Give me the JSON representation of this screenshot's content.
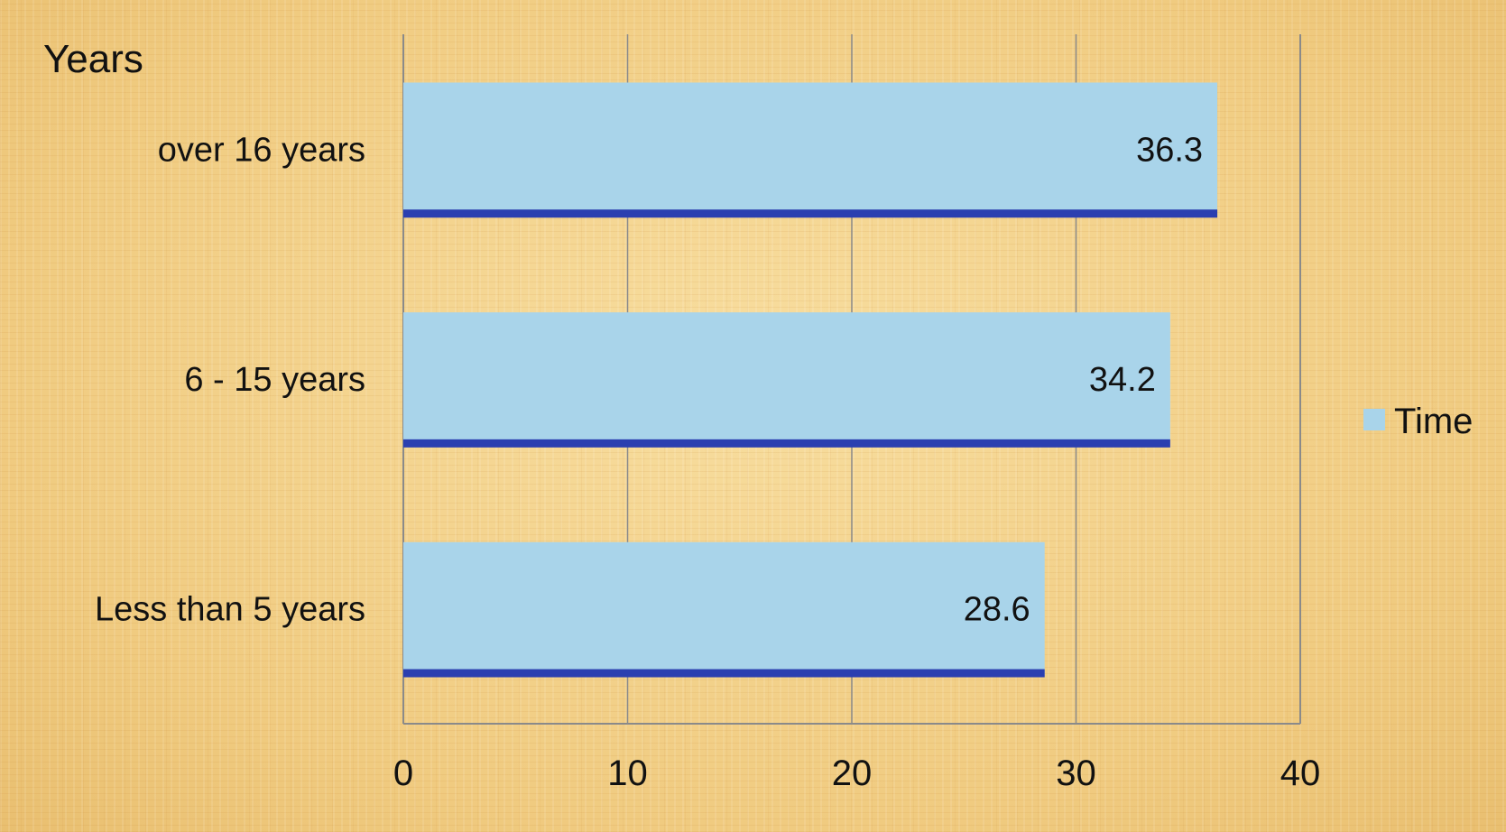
{
  "chart_data": {
    "type": "bar",
    "orientation": "horizontal",
    "categories": [
      "over 16 years",
      "6 - 15 years",
      "Less than 5 years"
    ],
    "series": [
      {
        "name": "Time",
        "values": [
          36.3,
          34.2,
          28.6
        ],
        "color": "#a9d4ea",
        "edge_color": "#2b3fb0"
      }
    ],
    "data_labels": [
      "36.3",
      "34.2",
      "28.6"
    ],
    "ylabel": "Years",
    "xlim": [
      0,
      40
    ],
    "x_ticks": [
      0,
      10,
      20,
      30,
      40
    ],
    "x_tick_labels": [
      "0",
      "10",
      "20",
      "30",
      "40"
    ],
    "grid": "vertical",
    "legend": {
      "position": "right",
      "entries": [
        "Time"
      ]
    }
  }
}
